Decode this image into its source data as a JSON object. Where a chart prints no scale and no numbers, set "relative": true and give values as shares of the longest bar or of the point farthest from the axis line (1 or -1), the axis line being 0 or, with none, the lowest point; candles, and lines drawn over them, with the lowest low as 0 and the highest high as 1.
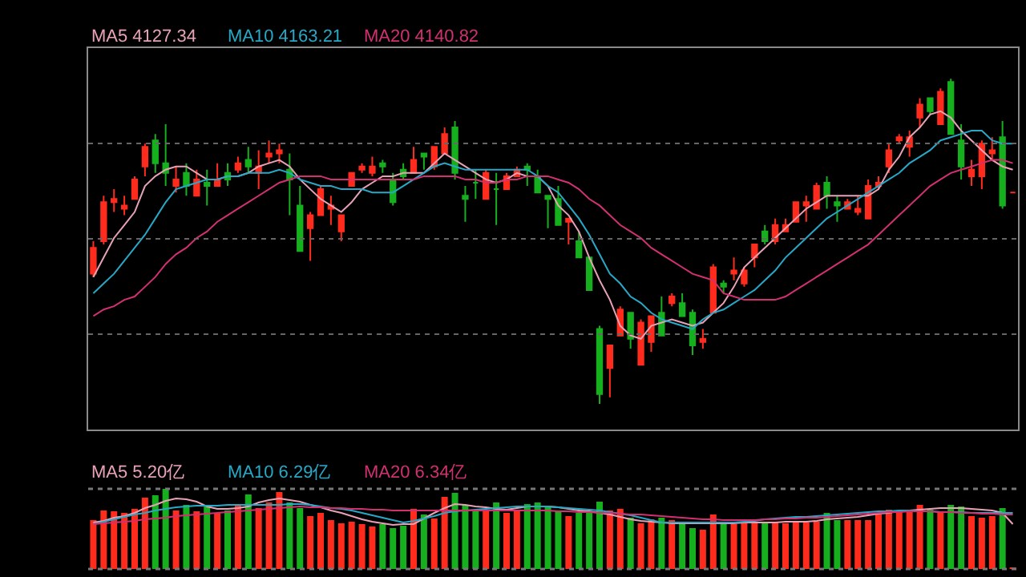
{
  "chart_data": [
    {
      "type": "candlestick",
      "relative": true,
      "grid": "y",
      "categories": [
        null,
        null,
        null,
        null,
        null,
        null,
        null,
        null,
        null,
        null,
        null,
        null,
        null,
        null,
        null,
        null,
        null,
        null,
        null,
        null,
        null,
        null,
        null,
        null,
        null,
        null,
        null,
        null,
        null,
        null,
        null,
        null,
        null,
        null,
        null,
        null,
        null,
        null,
        null,
        null,
        null,
        null,
        null,
        null,
        null,
        null,
        null,
        null,
        null,
        null,
        null,
        null,
        null,
        null,
        null,
        null,
        null,
        null,
        null,
        null,
        null,
        null,
        null,
        null,
        null,
        null,
        null,
        null,
        null,
        null,
        null,
        null,
        null,
        null,
        null,
        null,
        null,
        null,
        null,
        null,
        null,
        null,
        null,
        null,
        null,
        null,
        null,
        null,
        null,
        null
      ],
      "ohlc": [
        [
          0.4,
          0.5,
          0.39,
          0.48
        ],
        [
          0.5,
          0.64,
          0.49,
          0.62
        ],
        [
          0.62,
          0.66,
          0.59,
          0.63
        ],
        [
          0.6,
          0.64,
          0.58,
          0.61
        ],
        [
          0.63,
          0.7,
          0.63,
          0.69
        ],
        [
          0.73,
          0.8,
          0.7,
          0.79
        ],
        [
          0.81,
          0.83,
          0.71,
          0.74
        ],
        [
          0.74,
          0.86,
          0.67,
          0.71
        ],
        [
          0.67,
          0.73,
          0.65,
          0.69
        ],
        [
          0.71,
          0.74,
          0.64,
          0.67
        ],
        [
          0.64,
          0.72,
          0.64,
          0.69
        ],
        [
          0.68,
          0.72,
          0.61,
          0.67
        ],
        [
          0.67,
          0.74,
          0.67,
          0.69
        ],
        [
          0.71,
          0.74,
          0.67,
          0.69
        ],
        [
          0.72,
          0.76,
          0.71,
          0.74
        ],
        [
          0.75,
          0.79,
          0.71,
          0.73
        ],
        [
          0.71,
          0.78,
          0.66,
          0.73
        ],
        [
          0.76,
          0.81,
          0.74,
          0.77
        ],
        [
          0.77,
          0.8,
          0.74,
          0.78
        ],
        [
          0.72,
          0.77,
          0.58,
          0.69
        ],
        [
          0.61,
          0.67,
          0.47,
          0.47
        ],
        [
          0.54,
          0.59,
          0.44,
          0.58
        ],
        [
          0.58,
          0.67,
          0.58,
          0.66
        ],
        [
          0.6,
          0.64,
          0.55,
          0.61
        ],
        [
          0.53,
          0.58,
          0.5,
          0.58
        ],
        [
          0.67,
          0.71,
          0.67,
          0.71
        ],
        [
          0.72,
          0.74,
          0.71,
          0.73
        ],
        [
          0.71,
          0.76,
          0.7,
          0.73
        ],
        [
          0.74,
          0.75,
          0.71,
          0.73
        ],
        [
          0.69,
          0.71,
          0.61,
          0.62
        ],
        [
          0.72,
          0.74,
          0.69,
          0.7
        ],
        [
          0.71,
          0.79,
          0.71,
          0.75
        ],
        [
          0.77,
          0.77,
          0.72,
          0.76
        ],
        [
          0.73,
          0.79,
          0.72,
          0.79
        ],
        [
          0.77,
          0.85,
          0.77,
          0.83
        ],
        [
          0.85,
          0.87,
          0.69,
          0.71
        ],
        [
          0.64,
          0.67,
          0.56,
          0.63
        ],
        [
          0.68,
          0.72,
          0.63,
          0.68
        ],
        [
          0.63,
          0.72,
          0.63,
          0.71
        ],
        [
          0.66,
          0.71,
          0.55,
          0.66
        ],
        [
          0.66,
          0.71,
          0.66,
          0.7
        ],
        [
          0.7,
          0.73,
          0.7,
          0.72
        ],
        [
          0.73,
          0.74,
          0.67,
          0.72
        ],
        [
          0.7,
          0.72,
          0.65,
          0.65
        ],
        [
          0.64,
          0.64,
          0.54,
          0.63
        ],
        [
          0.63,
          0.67,
          0.55,
          0.55
        ],
        [
          0.56,
          0.57,
          0.49,
          0.57
        ],
        [
          0.5,
          0.53,
          0.45,
          0.45
        ],
        [
          0.45,
          0.45,
          0.35,
          0.35
        ],
        [
          0.23,
          0.24,
          0.0,
          0.03
        ],
        [
          0.11,
          0.18,
          0.02,
          0.18
        ],
        [
          0.21,
          0.3,
          0.21,
          0.29
        ],
        [
          0.28,
          0.28,
          0.17,
          0.2
        ],
        [
          0.12,
          0.26,
          0.12,
          0.25
        ],
        [
          0.19,
          0.27,
          0.16,
          0.27
        ],
        [
          0.28,
          0.33,
          0.21,
          0.21
        ],
        [
          0.31,
          0.34,
          0.3,
          0.33
        ],
        [
          0.31,
          0.34,
          0.27,
          0.27
        ],
        [
          0.28,
          0.29,
          0.15,
          0.18
        ],
        [
          0.19,
          0.23,
          0.17,
          0.2
        ],
        [
          0.28,
          0.43,
          0.28,
          0.42
        ],
        [
          0.37,
          0.38,
          0.34,
          0.36
        ],
        [
          0.4,
          0.45,
          0.38,
          0.41
        ],
        [
          0.37,
          0.42,
          0.36,
          0.41
        ],
        [
          0.45,
          0.49,
          0.42,
          0.49
        ],
        [
          0.53,
          0.55,
          0.49,
          0.5
        ],
        [
          0.5,
          0.57,
          0.49,
          0.55
        ],
        [
          0.53,
          0.57,
          0.53,
          0.55
        ],
        [
          0.56,
          0.62,
          0.56,
          0.62
        ],
        [
          0.61,
          0.64,
          0.56,
          0.62
        ],
        [
          0.6,
          0.68,
          0.6,
          0.67
        ],
        [
          0.68,
          0.7,
          0.6,
          0.64
        ],
        [
          0.62,
          0.64,
          0.56,
          0.61
        ],
        [
          0.6,
          0.63,
          0.6,
          0.62
        ],
        [
          0.59,
          0.64,
          0.58,
          0.6
        ],
        [
          0.57,
          0.69,
          0.57,
          0.67
        ],
        [
          0.67,
          0.7,
          0.66,
          0.68
        ],
        [
          0.73,
          0.8,
          0.71,
          0.78
        ],
        [
          0.81,
          0.83,
          0.8,
          0.82
        ],
        [
          0.79,
          0.84,
          0.76,
          0.82
        ],
        [
          0.88,
          0.94,
          0.85,
          0.92
        ],
        [
          0.94,
          0.94,
          0.89,
          0.9
        ],
        [
          0.86,
          0.97,
          0.86,
          0.96
        ],
        [
          0.99,
          1.0,
          0.83,
          0.83
        ],
        [
          0.81,
          0.86,
          0.69,
          0.73
        ],
        [
          0.7,
          0.75,
          0.67,
          0.72
        ],
        [
          0.7,
          0.81,
          0.66,
          0.8
        ],
        [
          0.77,
          0.82,
          0.75,
          0.78
        ],
        [
          0.82,
          0.87,
          0.6,
          0.61
        ],
        [
          0.65,
          0.65,
          0.65,
          0.65
        ]
      ],
      "colors": [
        "#ff2b1c",
        "#ff2b1c",
        "#ff2b1c",
        "#ff2b1c",
        "#ff2b1c",
        "#ff2b1c",
        "#16b01e",
        "#16b01e",
        "#ff2b1c",
        "#16b01e",
        "#ff2b1c",
        "#16b01e",
        "#ff2b1c",
        "#16b01e",
        "#ff2b1c",
        "#16b01e",
        "#ff2b1c",
        "#ff2b1c",
        "#ff2b1c",
        "#16b01e",
        "#16b01e",
        "#ff2b1c",
        "#ff2b1c",
        "#ff2b1c",
        "#ff2b1c",
        "#ff2b1c",
        "#ff2b1c",
        "#ff2b1c",
        "#16b01e",
        "#16b01e",
        "#16b01e",
        "#ff2b1c",
        "#16b01e",
        "#ff2b1c",
        "#ff2b1c",
        "#16b01e",
        "#16b01e",
        "#16b01e",
        "#ff2b1c",
        "#16b01e",
        "#ff2b1c",
        "#ff2b1c",
        "#16b01e",
        "#16b01e",
        "#16b01e",
        "#16b01e",
        "#ff2b1c",
        "#16b01e",
        "#16b01e",
        "#16b01e",
        "#ff2b1c",
        "#ff2b1c",
        "#16b01e",
        "#ff2b1c",
        "#ff2b1c",
        "#16b01e",
        "#ff2b1c",
        "#16b01e",
        "#16b01e",
        "#ff2b1c",
        "#ff2b1c",
        "#16b01e",
        "#ff2b1c",
        "#ff2b1c",
        "#ff2b1c",
        "#16b01e",
        "#ff2b1c",
        "#ff2b1c",
        "#ff2b1c",
        "#ff2b1c",
        "#ff2b1c",
        "#16b01e",
        "#16b01e",
        "#ff2b1c",
        "#ff2b1c",
        "#ff2b1c",
        "#ff2b1c",
        "#ff2b1c",
        "#ff2b1c",
        "#ff2b1c",
        "#ff2b1c",
        "#16b01e",
        "#ff2b1c",
        "#16b01e",
        "#16b01e",
        "#ff2b1c",
        "#ff2b1c",
        "#ff2b1c",
        "#16b01e",
        "#ff2b1c"
      ],
      "series": [
        {
          "name": "MA5 4127.34",
          "type": "line",
          "color": "#e8a2b6",
          "values": [
            0.39,
            0.45,
            0.51,
            0.55,
            0.59,
            0.67,
            0.7,
            0.72,
            0.73,
            0.73,
            0.71,
            0.69,
            0.69,
            0.7,
            0.7,
            0.71,
            0.73,
            0.74,
            0.75,
            0.73,
            0.69,
            0.66,
            0.63,
            0.61,
            0.59,
            0.62,
            0.66,
            0.68,
            0.7,
            0.7,
            0.71,
            0.71,
            0.71,
            0.74,
            0.77,
            0.75,
            0.73,
            0.71,
            0.69,
            0.68,
            0.69,
            0.71,
            0.7,
            0.7,
            0.67,
            0.61,
            0.58,
            0.53,
            0.45,
            0.38,
            0.32,
            0.24,
            0.21,
            0.2,
            0.24,
            0.25,
            0.26,
            0.25,
            0.24,
            0.25,
            0.28,
            0.31,
            0.36,
            0.42,
            0.45,
            0.48,
            0.51,
            0.54,
            0.57,
            0.6,
            0.62,
            0.64,
            0.64,
            0.64,
            0.64,
            0.64,
            0.66,
            0.72,
            0.76,
            0.82,
            0.85,
            0.89,
            0.9,
            0.88,
            0.84,
            0.81,
            0.78,
            0.75,
            0.73,
            0.72
          ]
        },
        {
          "name": "MA10 4163.21",
          "type": "line",
          "color": "#27a8c6",
          "values": [
            0.34,
            0.37,
            0.4,
            0.44,
            0.48,
            0.52,
            0.57,
            0.62,
            0.66,
            0.67,
            0.68,
            0.69,
            0.69,
            0.7,
            0.7,
            0.71,
            0.71,
            0.71,
            0.72,
            0.71,
            0.69,
            0.68,
            0.67,
            0.67,
            0.66,
            0.66,
            0.66,
            0.65,
            0.65,
            0.65,
            0.67,
            0.69,
            0.71,
            0.73,
            0.74,
            0.73,
            0.72,
            0.72,
            0.72,
            0.72,
            0.72,
            0.72,
            0.72,
            0.7,
            0.67,
            0.65,
            0.61,
            0.57,
            0.52,
            0.46,
            0.4,
            0.37,
            0.33,
            0.31,
            0.28,
            0.26,
            0.25,
            0.24,
            0.23,
            0.26,
            0.28,
            0.29,
            0.31,
            0.33,
            0.35,
            0.38,
            0.41,
            0.45,
            0.48,
            0.51,
            0.54,
            0.57,
            0.59,
            0.61,
            0.63,
            0.65,
            0.67,
            0.69,
            0.71,
            0.74,
            0.76,
            0.78,
            0.81,
            0.82,
            0.83,
            0.84,
            0.84,
            0.81,
            0.8,
            0.8
          ]
        },
        {
          "name": "MA20 4140.82",
          "type": "line",
          "color": "#d23070",
          "values": [
            0.27,
            0.29,
            0.3,
            0.32,
            0.33,
            0.36,
            0.39,
            0.43,
            0.46,
            0.48,
            0.51,
            0.53,
            0.56,
            0.58,
            0.6,
            0.62,
            0.64,
            0.66,
            0.68,
            0.69,
            0.7,
            0.7,
            0.7,
            0.69,
            0.69,
            0.69,
            0.69,
            0.69,
            0.69,
            0.69,
            0.69,
            0.69,
            0.7,
            0.7,
            0.7,
            0.7,
            0.69,
            0.69,
            0.68,
            0.68,
            0.69,
            0.69,
            0.7,
            0.7,
            0.7,
            0.69,
            0.68,
            0.66,
            0.63,
            0.61,
            0.58,
            0.55,
            0.53,
            0.51,
            0.48,
            0.46,
            0.44,
            0.42,
            0.4,
            0.39,
            0.38,
            0.34,
            0.33,
            0.32,
            0.32,
            0.32,
            0.32,
            0.33,
            0.35,
            0.37,
            0.39,
            0.41,
            0.43,
            0.45,
            0.47,
            0.49,
            0.52,
            0.55,
            0.58,
            0.61,
            0.64,
            0.67,
            0.69,
            0.71,
            0.72,
            0.73,
            0.74,
            0.75,
            0.75,
            0.74
          ]
        }
      ]
    },
    {
      "type": "bar",
      "relative": true,
      "categories": [
        null,
        null,
        null,
        null,
        null,
        null,
        null,
        null,
        null,
        null,
        null,
        null,
        null,
        null,
        null,
        null,
        null,
        null,
        null,
        null,
        null,
        null,
        null,
        null,
        null,
        null,
        null,
        null,
        null,
        null,
        null,
        null,
        null,
        null,
        null,
        null,
        null,
        null,
        null,
        null,
        null,
        null,
        null,
        null,
        null,
        null,
        null,
        null,
        null,
        null,
        null,
        null,
        null,
        null,
        null,
        null,
        null,
        null,
        null,
        null,
        null,
        null,
        null,
        null,
        null,
        null,
        null,
        null,
        null,
        null,
        null,
        null,
        null,
        null,
        null,
        null,
        null,
        null,
        null,
        null,
        null,
        null,
        null,
        null,
        null,
        null,
        null,
        null,
        null,
        null
      ],
      "series": [
        {
          "type": "bar",
          "values": [
            0.61,
            0.73,
            0.72,
            0.7,
            0.75,
            0.89,
            0.92,
            1.0,
            0.73,
            0.8,
            0.72,
            0.78,
            0.7,
            0.73,
            0.8,
            0.93,
            0.76,
            0.83,
            0.96,
            0.83,
            0.76,
            0.66,
            0.7,
            0.61,
            0.57,
            0.59,
            0.56,
            0.53,
            0.56,
            0.51,
            0.54,
            0.75,
            0.68,
            0.63,
            0.9,
            0.95,
            0.8,
            0.72,
            0.73,
            0.83,
            0.7,
            0.73,
            0.81,
            0.83,
            0.78,
            0.72,
            0.66,
            0.7,
            0.7,
            0.84,
            0.73,
            0.75,
            0.64,
            0.57,
            0.62,
            0.64,
            0.61,
            0.58,
            0.51,
            0.49,
            0.68,
            0.56,
            0.56,
            0.58,
            0.58,
            0.58,
            0.58,
            0.57,
            0.58,
            0.58,
            0.59,
            0.7,
            0.61,
            0.61,
            0.61,
            0.61,
            0.68,
            0.74,
            0.72,
            0.73,
            0.8,
            0.74,
            0.72,
            0.8,
            0.78,
            0.66,
            0.64,
            0.66,
            0.76,
            0.02
          ],
          "colors": [
            "#ff2b1c",
            "#ff2b1c",
            "#ff2b1c",
            "#ff2b1c",
            "#ff2b1c",
            "#ff2b1c",
            "#16b01e",
            "#16b01e",
            "#ff2b1c",
            "#16b01e",
            "#ff2b1c",
            "#16b01e",
            "#ff2b1c",
            "#16b01e",
            "#ff2b1c",
            "#16b01e",
            "#ff2b1c",
            "#ff2b1c",
            "#ff2b1c",
            "#16b01e",
            "#16b01e",
            "#ff2b1c",
            "#ff2b1c",
            "#ff2b1c",
            "#ff2b1c",
            "#ff2b1c",
            "#ff2b1c",
            "#ff2b1c",
            "#16b01e",
            "#16b01e",
            "#16b01e",
            "#ff2b1c",
            "#16b01e",
            "#ff2b1c",
            "#ff2b1c",
            "#16b01e",
            "#16b01e",
            "#16b01e",
            "#ff2b1c",
            "#16b01e",
            "#ff2b1c",
            "#ff2b1c",
            "#16b01e",
            "#16b01e",
            "#16b01e",
            "#16b01e",
            "#ff2b1c",
            "#16b01e",
            "#16b01e",
            "#16b01e",
            "#ff2b1c",
            "#ff2b1c",
            "#16b01e",
            "#ff2b1c",
            "#ff2b1c",
            "#16b01e",
            "#ff2b1c",
            "#16b01e",
            "#16b01e",
            "#ff2b1c",
            "#ff2b1c",
            "#16b01e",
            "#ff2b1c",
            "#ff2b1c",
            "#ff2b1c",
            "#16b01e",
            "#ff2b1c",
            "#ff2b1c",
            "#ff2b1c",
            "#ff2b1c",
            "#ff2b1c",
            "#16b01e",
            "#16b01e",
            "#ff2b1c",
            "#ff2b1c",
            "#ff2b1c",
            "#ff2b1c",
            "#ff2b1c",
            "#ff2b1c",
            "#ff2b1c",
            "#ff2b1c",
            "#16b01e",
            "#ff2b1c",
            "#16b01e",
            "#16b01e",
            "#ff2b1c",
            "#ff2b1c",
            "#ff2b1c",
            "#16b01e",
            "#ff2b1c"
          ]
        },
        {
          "name": "MA5 5.20亿",
          "type": "line",
          "color": "#e8a2b6",
          "values": [
            0.58,
            0.6,
            0.64,
            0.66,
            0.7,
            0.76,
            0.8,
            0.85,
            0.88,
            0.87,
            0.84,
            0.78,
            0.75,
            0.75,
            0.76,
            0.78,
            0.83,
            0.86,
            0.88,
            0.86,
            0.84,
            0.8,
            0.77,
            0.73,
            0.7,
            0.66,
            0.62,
            0.59,
            0.57,
            0.55,
            0.56,
            0.56,
            0.63,
            0.7,
            0.76,
            0.81,
            0.8,
            0.78,
            0.77,
            0.75,
            0.74,
            0.76,
            0.78,
            0.78,
            0.78,
            0.77,
            0.75,
            0.73,
            0.72,
            0.7,
            0.68,
            0.65,
            0.62,
            0.6,
            0.59,
            0.58,
            0.57,
            0.57,
            0.57,
            0.57,
            0.57,
            0.57,
            0.57,
            0.58,
            0.58,
            0.58,
            0.58,
            0.59,
            0.59,
            0.59,
            0.6,
            0.62,
            0.63,
            0.64,
            0.65,
            0.67,
            0.69,
            0.7,
            0.72,
            0.73,
            0.74,
            0.75,
            0.76,
            0.76,
            0.76,
            0.75,
            0.74,
            0.73,
            0.7,
            0.56
          ]
        },
        {
          "name": "MA10 6.29亿",
          "type": "line",
          "color": "#27a8c6",
          "values": [
            0.56,
            0.59,
            0.62,
            0.65,
            0.68,
            0.7,
            0.73,
            0.75,
            0.77,
            0.78,
            0.79,
            0.79,
            0.79,
            0.8,
            0.8,
            0.8,
            0.8,
            0.8,
            0.8,
            0.81,
            0.81,
            0.8,
            0.78,
            0.76,
            0.75,
            0.73,
            0.7,
            0.67,
            0.64,
            0.61,
            0.58,
            0.6,
            0.63,
            0.66,
            0.7,
            0.72,
            0.73,
            0.74,
            0.75,
            0.76,
            0.77,
            0.78,
            0.78,
            0.78,
            0.78,
            0.77,
            0.76,
            0.75,
            0.74,
            0.73,
            0.71,
            0.69,
            0.67,
            0.64,
            0.61,
            0.58,
            0.58,
            0.58,
            0.58,
            0.58,
            0.58,
            0.58,
            0.58,
            0.59,
            0.6,
            0.62,
            0.63,
            0.64,
            0.65,
            0.65,
            0.66,
            0.67,
            0.68,
            0.69,
            0.7,
            0.71,
            0.72,
            0.72,
            0.73,
            0.73,
            0.72,
            0.72,
            0.71,
            0.71,
            0.71,
            0.7,
            0.7,
            0.7,
            0.7,
            0.7
          ]
        },
        {
          "name": "MA20 6.34亿",
          "type": "line",
          "color": "#d23070",
          "values": [
            0.56,
            0.57,
            0.58,
            0.59,
            0.6,
            0.62,
            0.63,
            0.64,
            0.66,
            0.67,
            0.68,
            0.69,
            0.7,
            0.71,
            0.72,
            0.73,
            0.74,
            0.75,
            0.76,
            0.77,
            0.78,
            0.77,
            0.77,
            0.76,
            0.76,
            0.75,
            0.75,
            0.74,
            0.74,
            0.73,
            0.73,
            0.73,
            0.73,
            0.73,
            0.73,
            0.73,
            0.73,
            0.73,
            0.73,
            0.73,
            0.73,
            0.73,
            0.73,
            0.73,
            0.73,
            0.72,
            0.72,
            0.71,
            0.71,
            0.7,
            0.7,
            0.69,
            0.68,
            0.68,
            0.67,
            0.66,
            0.65,
            0.64,
            0.63,
            0.62,
            0.62,
            0.61,
            0.61,
            0.61,
            0.61,
            0.62,
            0.62,
            0.63,
            0.63,
            0.64,
            0.64,
            0.65,
            0.66,
            0.67,
            0.68,
            0.69,
            0.7,
            0.71,
            0.71,
            0.72,
            0.72,
            0.72,
            0.71,
            0.71,
            0.7,
            0.7,
            0.69,
            0.69,
            0.68,
            0.68
          ]
        }
      ]
    }
  ]
}
